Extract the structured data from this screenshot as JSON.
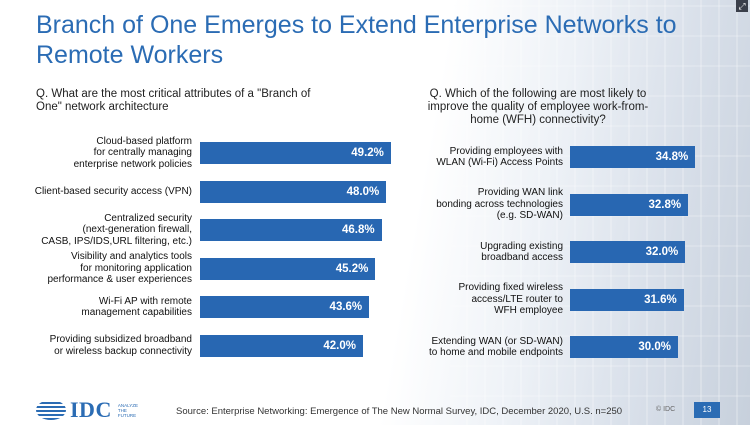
{
  "title": "Branch of One Emerges to Extend Enterprise Networks to Remote Workers",
  "chart_data": [
    {
      "type": "bar",
      "orientation": "horizontal",
      "title": "Q. What are the most critical attributes of a \"Branch of One\" network architecture",
      "categories": [
        "Cloud-based platform for centrally managing enterprise network policies",
        "Client-based security access (VPN)",
        "Centralized security (next-generation firewall, CASB, IPS/IDS,URL filtering, etc.)",
        "Visibility and analytics tools for monitoring application performance & user experiences",
        "Wi-Fi AP with remote management capabilities",
        "Providing subsidized broadband or wireless backup connectivity"
      ],
      "label_lines": [
        [
          "Cloud-based platform",
          "for centrally managing",
          "enterprise network policies"
        ],
        [
          "Client-based security access (VPN)"
        ],
        [
          "Centralized security",
          "(next-generation firewall,",
          "CASB, IPS/IDS,URL filtering, etc.)"
        ],
        [
          "Visibility and analytics tools",
          "for monitoring application",
          "performance & user experiences"
        ],
        [
          "Wi-Fi AP with remote",
          "management capabilities"
        ],
        [
          "Providing subsidized broadband",
          "or wireless backup connectivity"
        ]
      ],
      "values": [
        49.2,
        48.0,
        46.8,
        45.2,
        43.6,
        42.0
      ],
      "value_labels": [
        "49.2%",
        "48.0%",
        "46.8%",
        "45.2%",
        "43.6%",
        "42.0%"
      ],
      "unit": "%",
      "bar_color": "#2867b2"
    },
    {
      "type": "bar",
      "orientation": "horizontal",
      "title": "Q. Which of the following are most likely to improve the quality of employee work-from-home (WFH) connectivity?",
      "categories": [
        "Providing employees with WLAN (Wi-Fi) Access Points",
        "Providing WAN link bonding across technologies (e.g. SD-WAN)",
        "Upgrading existing broadband access",
        "Providing fixed wireless access/LTE router to WFH employee",
        "Extending WAN (or SD-WAN) to home and mobile endpoints"
      ],
      "label_lines": [
        [
          "Providing employees with",
          "WLAN (Wi-Fi) Access Points"
        ],
        [
          "Providing WAN link",
          "bonding across technologies",
          "(e.g. SD-WAN)"
        ],
        [
          "Upgrading existing",
          "broadband access"
        ],
        [
          "Providing fixed wireless",
          "access/LTE router to",
          "WFH employee"
        ],
        [
          "Extending WAN (or SD-WAN)",
          "to home and mobile endpoints"
        ]
      ],
      "values": [
        34.8,
        32.8,
        32.0,
        31.6,
        30.0
      ],
      "value_labels": [
        "34.8%",
        "32.8%",
        "32.0%",
        "31.6%",
        "30.0%"
      ],
      "unit": "%",
      "bar_color": "#2867b2"
    }
  ],
  "footer": {
    "logo_text": "IDC",
    "logo_tagline": "ANALYZE THE FUTURE",
    "source": "Source: Enterprise Networking: Emergence of The New Normal Survey, IDC, December 2020, U.S. n=250",
    "copyright": "© IDC",
    "page_number": "13"
  },
  "colors": {
    "brand_blue": "#2b6cb4",
    "bar_blue": "#2867b2"
  },
  "icons": {
    "expand": "expand-icon",
    "logo_globe": "globe-icon"
  }
}
